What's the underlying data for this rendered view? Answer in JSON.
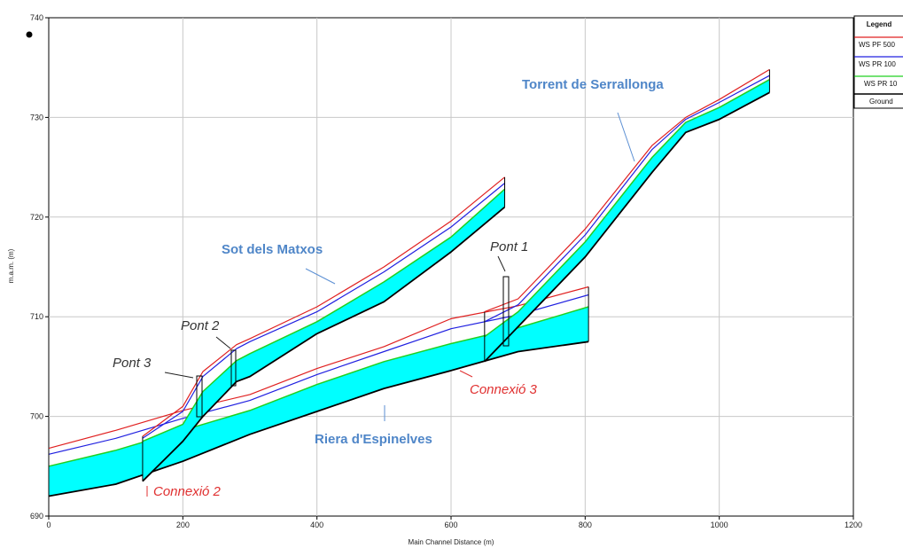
{
  "chart_data": {
    "type": "line",
    "xlabel": "Main Channel Distance (m)",
    "ylabel": "m.a.m. (m)",
    "xlim": [
      0,
      1200
    ],
    "ylim": [
      690,
      740
    ],
    "xticks": [
      0,
      200,
      400,
      600,
      800,
      1000,
      1200
    ],
    "yticks": [
      690,
      700,
      710,
      720,
      730,
      740
    ],
    "grid": true,
    "legend": {
      "title": "Legend",
      "placement": "top-right",
      "entries": [
        {
          "label": "WS  PF 500",
          "color": "#e02020"
        },
        {
          "label": "WS  PR 100",
          "color": "#2020e0"
        },
        {
          "label": "WS  PR 10",
          "color": "#20d020"
        },
        {
          "label": "Ground",
          "color": "#000000"
        }
      ]
    },
    "fill_color": "#00ffff",
    "reaches": [
      {
        "id": "riera",
        "x": [
          0,
          100,
          200,
          300,
          400,
          500,
          600,
          700,
          805
        ],
        "ground": [
          692,
          693.2,
          695.5,
          698.2,
          700.5,
          702.8,
          704.6,
          706.5,
          707.5
        ],
        "pr10": [
          695,
          696.6,
          698.6,
          700.6,
          703.2,
          705.5,
          707.3,
          708.9,
          711
        ],
        "pr100": [
          696.2,
          697.8,
          699.8,
          701.6,
          704.2,
          706.5,
          708.8,
          710.2,
          712.2
        ],
        "pf500": [
          696.8,
          698.6,
          700.6,
          702.2,
          704.8,
          707,
          709.8,
          711.1,
          713
        ]
      },
      {
        "id": "sot",
        "x": [
          140,
          200,
          230,
          280,
          300,
          400,
          500,
          600,
          680
        ],
        "ground": [
          693.5,
          697.5,
          700,
          703.5,
          704,
          708.3,
          711.5,
          716.5,
          721
        ],
        "pr10": [
          697.5,
          699.2,
          702.5,
          705.6,
          706.3,
          709.5,
          713.5,
          718,
          722.8
        ],
        "pr100": [
          697.8,
          700.5,
          704,
          706.8,
          707.5,
          710.5,
          714.5,
          719,
          723.4
        ],
        "pf500": [
          698,
          701,
          704.5,
          707.2,
          707.8,
          711,
          715,
          719.6,
          724
        ]
      },
      {
        "id": "torrent",
        "x": [
          650,
          700,
          800,
          900,
          950,
          1000,
          1075
        ],
        "ground": [
          705.5,
          709,
          716,
          724.5,
          728.5,
          729.8,
          732.5
        ],
        "pr10": [
          708,
          710.5,
          717.5,
          726,
          729.5,
          731,
          733.8
        ],
        "pr100": [
          709.5,
          711.2,
          718.2,
          726.8,
          729.8,
          731.5,
          734.2
        ],
        "pf500": [
          710.5,
          711.8,
          718.8,
          727.2,
          730,
          731.8,
          734.8
        ]
      }
    ],
    "annotations": [
      {
        "text": "Torrent de Serrallonga",
        "kind": "reach"
      },
      {
        "text": "Sot dels Matxos",
        "kind": "reach"
      },
      {
        "text": "Riera d'Espinelves",
        "kind": "reach"
      },
      {
        "text": "Pont 1",
        "kind": "bridge"
      },
      {
        "text": "Pont 2",
        "kind": "bridge"
      },
      {
        "text": "Pont 3",
        "kind": "bridge"
      },
      {
        "text": "Connexió 3",
        "kind": "junction"
      },
      {
        "text": "Connexió 2",
        "kind": "junction"
      }
    ]
  }
}
